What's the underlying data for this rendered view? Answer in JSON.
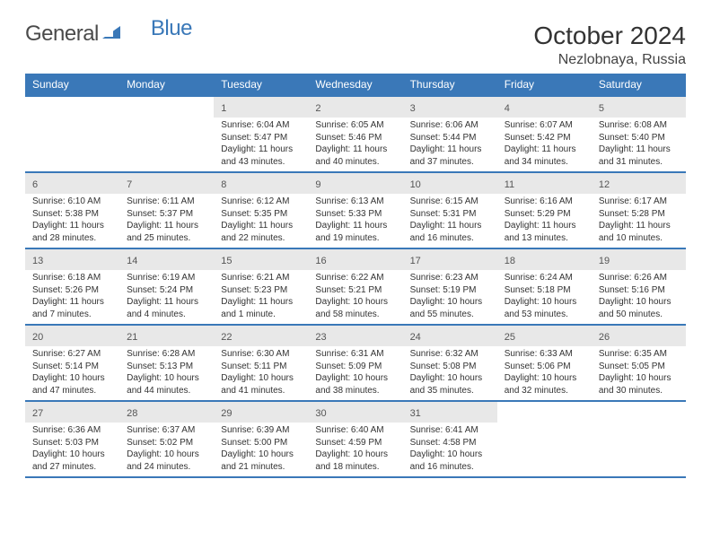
{
  "brand": {
    "text1": "General",
    "text2": "Blue"
  },
  "title": "October 2024",
  "location": "Nezlobnaya, Russia",
  "colors": {
    "brand_blue": "#3a78b8",
    "header_text": "#ffffff",
    "daynum_bg": "#e8e8e8",
    "text": "#333333"
  },
  "days_of_week": [
    "Sunday",
    "Monday",
    "Tuesday",
    "Wednesday",
    "Thursday",
    "Friday",
    "Saturday"
  ],
  "weeks": [
    [
      null,
      null,
      {
        "num": "1",
        "sunrise": "6:04 AM",
        "sunset": "5:47 PM",
        "daylight": "11 hours and 43 minutes."
      },
      {
        "num": "2",
        "sunrise": "6:05 AM",
        "sunset": "5:46 PM",
        "daylight": "11 hours and 40 minutes."
      },
      {
        "num": "3",
        "sunrise": "6:06 AM",
        "sunset": "5:44 PM",
        "daylight": "11 hours and 37 minutes."
      },
      {
        "num": "4",
        "sunrise": "6:07 AM",
        "sunset": "5:42 PM",
        "daylight": "11 hours and 34 minutes."
      },
      {
        "num": "5",
        "sunrise": "6:08 AM",
        "sunset": "5:40 PM",
        "daylight": "11 hours and 31 minutes."
      }
    ],
    [
      {
        "num": "6",
        "sunrise": "6:10 AM",
        "sunset": "5:38 PM",
        "daylight": "11 hours and 28 minutes."
      },
      {
        "num": "7",
        "sunrise": "6:11 AM",
        "sunset": "5:37 PM",
        "daylight": "11 hours and 25 minutes."
      },
      {
        "num": "8",
        "sunrise": "6:12 AM",
        "sunset": "5:35 PM",
        "daylight": "11 hours and 22 minutes."
      },
      {
        "num": "9",
        "sunrise": "6:13 AM",
        "sunset": "5:33 PM",
        "daylight": "11 hours and 19 minutes."
      },
      {
        "num": "10",
        "sunrise": "6:15 AM",
        "sunset": "5:31 PM",
        "daylight": "11 hours and 16 minutes."
      },
      {
        "num": "11",
        "sunrise": "6:16 AM",
        "sunset": "5:29 PM",
        "daylight": "11 hours and 13 minutes."
      },
      {
        "num": "12",
        "sunrise": "6:17 AM",
        "sunset": "5:28 PM",
        "daylight": "11 hours and 10 minutes."
      }
    ],
    [
      {
        "num": "13",
        "sunrise": "6:18 AM",
        "sunset": "5:26 PM",
        "daylight": "11 hours and 7 minutes."
      },
      {
        "num": "14",
        "sunrise": "6:19 AM",
        "sunset": "5:24 PM",
        "daylight": "11 hours and 4 minutes."
      },
      {
        "num": "15",
        "sunrise": "6:21 AM",
        "sunset": "5:23 PM",
        "daylight": "11 hours and 1 minute."
      },
      {
        "num": "16",
        "sunrise": "6:22 AM",
        "sunset": "5:21 PM",
        "daylight": "10 hours and 58 minutes."
      },
      {
        "num": "17",
        "sunrise": "6:23 AM",
        "sunset": "5:19 PM",
        "daylight": "10 hours and 55 minutes."
      },
      {
        "num": "18",
        "sunrise": "6:24 AM",
        "sunset": "5:18 PM",
        "daylight": "10 hours and 53 minutes."
      },
      {
        "num": "19",
        "sunrise": "6:26 AM",
        "sunset": "5:16 PM",
        "daylight": "10 hours and 50 minutes."
      }
    ],
    [
      {
        "num": "20",
        "sunrise": "6:27 AM",
        "sunset": "5:14 PM",
        "daylight": "10 hours and 47 minutes."
      },
      {
        "num": "21",
        "sunrise": "6:28 AM",
        "sunset": "5:13 PM",
        "daylight": "10 hours and 44 minutes."
      },
      {
        "num": "22",
        "sunrise": "6:30 AM",
        "sunset": "5:11 PM",
        "daylight": "10 hours and 41 minutes."
      },
      {
        "num": "23",
        "sunrise": "6:31 AM",
        "sunset": "5:09 PM",
        "daylight": "10 hours and 38 minutes."
      },
      {
        "num": "24",
        "sunrise": "6:32 AM",
        "sunset": "5:08 PM",
        "daylight": "10 hours and 35 minutes."
      },
      {
        "num": "25",
        "sunrise": "6:33 AM",
        "sunset": "5:06 PM",
        "daylight": "10 hours and 32 minutes."
      },
      {
        "num": "26",
        "sunrise": "6:35 AM",
        "sunset": "5:05 PM",
        "daylight": "10 hours and 30 minutes."
      }
    ],
    [
      {
        "num": "27",
        "sunrise": "6:36 AM",
        "sunset": "5:03 PM",
        "daylight": "10 hours and 27 minutes."
      },
      {
        "num": "28",
        "sunrise": "6:37 AM",
        "sunset": "5:02 PM",
        "daylight": "10 hours and 24 minutes."
      },
      {
        "num": "29",
        "sunrise": "6:39 AM",
        "sunset": "5:00 PM",
        "daylight": "10 hours and 21 minutes."
      },
      {
        "num": "30",
        "sunrise": "6:40 AM",
        "sunset": "4:59 PM",
        "daylight": "10 hours and 18 minutes."
      },
      {
        "num": "31",
        "sunrise": "6:41 AM",
        "sunset": "4:58 PM",
        "daylight": "10 hours and 16 minutes."
      },
      null,
      null
    ]
  ],
  "labels": {
    "sunrise": "Sunrise:",
    "sunset": "Sunset:",
    "daylight": "Daylight:"
  }
}
